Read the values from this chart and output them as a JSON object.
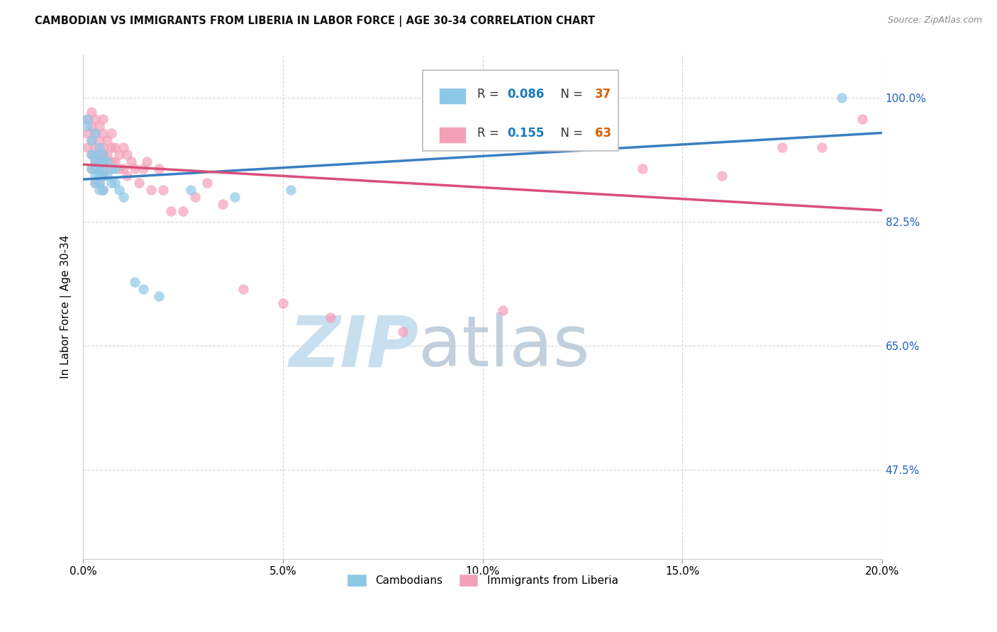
{
  "title": "CAMBODIAN VS IMMIGRANTS FROM LIBERIA IN LABOR FORCE | AGE 30-34 CORRELATION CHART",
  "source": "Source: ZipAtlas.com",
  "xlabel_ticks": [
    "0.0%",
    "5.0%",
    "10.0%",
    "15.0%",
    "20.0%"
  ],
  "xlabel_tick_vals": [
    0.0,
    0.05,
    0.1,
    0.15,
    0.2
  ],
  "ylabel": "In Labor Force | Age 30-34",
  "ylabel_right_ticks": [
    "100.0%",
    "82.5%",
    "65.0%",
    "47.5%"
  ],
  "ylabel_right_tick_vals": [
    1.0,
    0.825,
    0.65,
    0.475
  ],
  "xlim": [
    0.0,
    0.2
  ],
  "ylim": [
    0.35,
    1.06
  ],
  "cambodian_R": 0.086,
  "cambodian_N": 37,
  "liberia_R": 0.155,
  "liberia_N": 63,
  "cambodian_color": "#8ec8e8",
  "liberia_color": "#f4a0b8",
  "trendline_cambodian_color": "#3a7fc1",
  "trendline_liberia_color": "#d94f7a",
  "watermark_zip": "ZIP",
  "watermark_atlas": "atlas",
  "watermark_color_zip": "#c8dff0",
  "watermark_color_atlas": "#b8c8d8",
  "background_color": "#ffffff",
  "grid_color": "#cccccc",
  "legend_R_color": "#1a7abf",
  "legend_N_color": "#d95f00",
  "title_color": "#111111",
  "source_color": "#888888",
  "right_axis_color": "#2060c0",
  "cambodian_x": [
    0.001,
    0.001,
    0.002,
    0.002,
    0.002,
    0.003,
    0.003,
    0.003,
    0.003,
    0.003,
    0.003,
    0.004,
    0.004,
    0.004,
    0.004,
    0.004,
    0.004,
    0.005,
    0.005,
    0.005,
    0.005,
    0.005,
    0.006,
    0.006,
    0.007,
    0.007,
    0.008,
    0.008,
    0.009,
    0.01,
    0.013,
    0.015,
    0.019,
    0.027,
    0.038,
    0.052,
    0.19
  ],
  "cambodian_y": [
    0.96,
    0.97,
    0.94,
    0.92,
    0.9,
    0.95,
    0.92,
    0.91,
    0.9,
    0.89,
    0.88,
    0.93,
    0.91,
    0.9,
    0.89,
    0.88,
    0.87,
    0.92,
    0.91,
    0.9,
    0.89,
    0.87,
    0.91,
    0.89,
    0.9,
    0.88,
    0.9,
    0.88,
    0.87,
    0.86,
    0.74,
    0.73,
    0.72,
    0.87,
    0.86,
    0.87,
    1.0
  ],
  "liberia_x": [
    0.001,
    0.001,
    0.001,
    0.002,
    0.002,
    0.002,
    0.002,
    0.002,
    0.003,
    0.003,
    0.003,
    0.003,
    0.003,
    0.003,
    0.004,
    0.004,
    0.004,
    0.004,
    0.004,
    0.005,
    0.005,
    0.005,
    0.005,
    0.005,
    0.005,
    0.005,
    0.006,
    0.006,
    0.006,
    0.007,
    0.007,
    0.007,
    0.008,
    0.008,
    0.009,
    0.009,
    0.01,
    0.01,
    0.011,
    0.011,
    0.012,
    0.013,
    0.014,
    0.015,
    0.016,
    0.017,
    0.019,
    0.02,
    0.022,
    0.025,
    0.028,
    0.031,
    0.035,
    0.04,
    0.05,
    0.062,
    0.08,
    0.105,
    0.14,
    0.16,
    0.175,
    0.185,
    0.195
  ],
  "liberia_y": [
    0.97,
    0.95,
    0.93,
    0.98,
    0.96,
    0.94,
    0.92,
    0.9,
    0.97,
    0.95,
    0.93,
    0.91,
    0.9,
    0.88,
    0.96,
    0.94,
    0.92,
    0.9,
    0.88,
    0.97,
    0.95,
    0.93,
    0.92,
    0.91,
    0.89,
    0.87,
    0.94,
    0.92,
    0.9,
    0.95,
    0.93,
    0.91,
    0.93,
    0.91,
    0.92,
    0.9,
    0.93,
    0.9,
    0.92,
    0.89,
    0.91,
    0.9,
    0.88,
    0.9,
    0.91,
    0.87,
    0.9,
    0.87,
    0.84,
    0.84,
    0.86,
    0.88,
    0.85,
    0.73,
    0.71,
    0.69,
    0.67,
    0.7,
    0.9,
    0.89,
    0.93,
    0.93,
    0.97
  ]
}
